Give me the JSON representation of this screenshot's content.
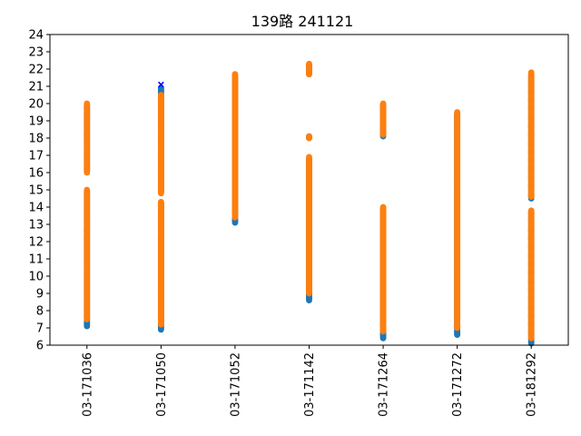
{
  "chart_data": {
    "type": "scatter",
    "title": "139路  241121",
    "xlabel": "",
    "ylabel": "",
    "categories": [
      "03-171036",
      "03-171050",
      "03-171052",
      "03-171142",
      "03-171264",
      "03-171272",
      "03-181292"
    ],
    "ylim": [
      6,
      24
    ],
    "yticks": [
      6,
      7,
      8,
      9,
      10,
      11,
      12,
      13,
      14,
      15,
      16,
      17,
      18,
      19,
      20,
      21,
      22,
      23,
      24
    ],
    "grid": false,
    "legend": "none",
    "series": [
      {
        "color": "#1f77b4",
        "marker": "circle",
        "ranges": [
          [
            [
              7.1,
              14.9
            ],
            [
              16.1,
              19.9
            ]
          ],
          [
            [
              6.9,
              14.2
            ],
            [
              14.9,
              20.9
            ]
          ],
          [
            [
              13.1,
              21.5
            ]
          ],
          [
            [
              8.6,
              16.8
            ],
            [
              18.0,
              18.1
            ],
            [
              21.7,
              22.2
            ]
          ],
          [
            [
              6.4,
              13.9
            ],
            [
              18.1,
              19.9
            ]
          ],
          [
            [
              6.6,
              19.4
            ]
          ],
          [
            [
              6.1,
              13.7
            ],
            [
              14.5,
              21.6
            ]
          ]
        ]
      },
      {
        "color": "#ff7f0e",
        "marker": "circle",
        "ranges": [
          [
            [
              7.5,
              15.0
            ],
            [
              16.0,
              20.0
            ]
          ],
          [
            [
              7.2,
              14.3
            ],
            [
              14.8,
              20.5
            ]
          ],
          [
            [
              13.4,
              21.7
            ]
          ],
          [
            [
              9.0,
              16.9
            ],
            [
              18.0,
              18.1
            ],
            [
              21.7,
              22.3
            ]
          ],
          [
            [
              6.8,
              14.0
            ],
            [
              18.2,
              20.0
            ]
          ],
          [
            [
              7.0,
              19.5
            ]
          ],
          [
            [
              6.4,
              13.8
            ],
            [
              14.6,
              21.8
            ]
          ]
        ]
      },
      {
        "color": "#0000ff",
        "marker": "x",
        "points": [
          {
            "category": "03-171050",
            "y": 21.1
          }
        ]
      }
    ]
  }
}
